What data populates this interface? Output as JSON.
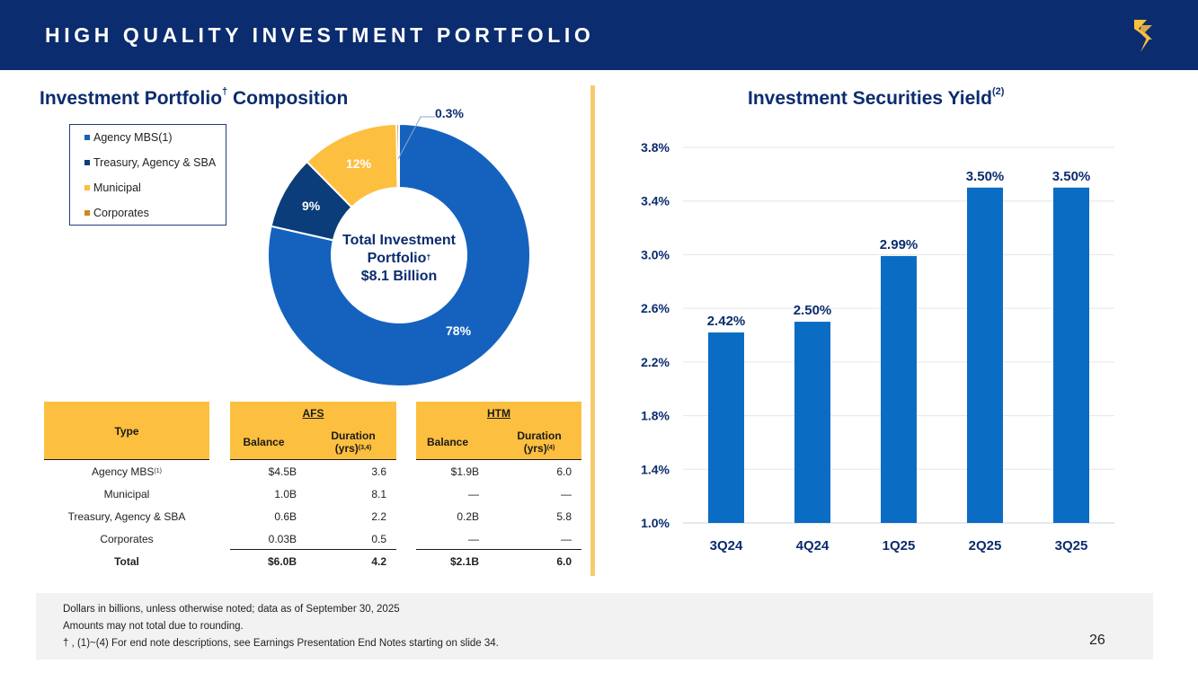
{
  "header": {
    "title": "HIGH QUALITY INVESTMENT PORTFOLIO"
  },
  "brand": {
    "navy": "#0b2c6e",
    "gold": "#fdbf3f",
    "blue": "#1562be",
    "bar_blue": "#0b6cc4"
  },
  "left": {
    "title": "Investment Portfolio",
    "title_sup": "†",
    "title_tail": " Composition"
  },
  "right": {
    "title": "Investment Securities Yield",
    "title_sup": "(2)"
  },
  "donut": {
    "center_line1": "Total Investment",
    "center_line2": "Portfolio",
    "center_sup": "†",
    "center_line3": "$8.1 Billion",
    "callout_label": "0.3%",
    "slices": [
      {
        "name": "Agency MBS(1)",
        "label": "78%",
        "color": "#1562be"
      },
      {
        "name": "Treasury, Agency & SBA",
        "label": "9%",
        "color": "#0b3d7a"
      },
      {
        "name": "Municipal",
        "label": "12%",
        "color": "#fdbf3f"
      },
      {
        "name": "Corporates",
        "label": "0.3%",
        "color": "#c98a1b"
      }
    ]
  },
  "table": {
    "type_header": "Type",
    "afs_header": "AFS",
    "htm_header": "HTM",
    "balance_header": "Balance",
    "duration_header_l1": "Duration",
    "duration_header_l2": "(yrs)",
    "afs_duration_sup": "(3,4)",
    "htm_duration_sup": "(4)",
    "rows": [
      {
        "type": "Agency MBS",
        "type_sup": "(1)",
        "afs_balance": "$4.5B",
        "afs_duration": "3.6",
        "htm_balance": "$1.9B",
        "htm_duration": "6.0"
      },
      {
        "type": "Municipal",
        "type_sup": "",
        "afs_balance": "1.0B",
        "afs_duration": "8.1",
        "htm_balance": "—",
        "htm_duration": "—"
      },
      {
        "type": "Treasury, Agency & SBA",
        "type_sup": "",
        "afs_balance": "0.6B",
        "afs_duration": "2.2",
        "htm_balance": "0.2B",
        "htm_duration": "5.8"
      },
      {
        "type": "Corporates",
        "type_sup": "",
        "afs_balance": "0.03B",
        "afs_duration": "0.5",
        "htm_balance": "—",
        "htm_duration": "—"
      }
    ],
    "total": {
      "type": "Total",
      "afs_balance": "$6.0B",
      "afs_duration": "4.2",
      "htm_balance": "$2.1B",
      "htm_duration": "6.0"
    }
  },
  "chart_data": [
    {
      "type": "pie",
      "title": "Investment Portfolio† Composition",
      "categories": [
        "Agency MBS(1)",
        "Treasury, Agency & SBA",
        "Municipal",
        "Corporates"
      ],
      "values": [
        78,
        9,
        12,
        0.3
      ],
      "labels": [
        "78%",
        "9%",
        "12%",
        "0.3%"
      ],
      "center_text": "Total Investment Portfolio† $8.1 Billion",
      "legend": "top-left"
    },
    {
      "type": "bar",
      "title": "Investment Securities Yield(2)",
      "categories": [
        "3Q24",
        "4Q24",
        "1Q25",
        "2Q25",
        "3Q25"
      ],
      "values": [
        2.42,
        2.5,
        2.99,
        3.5,
        3.5
      ],
      "data_labels": [
        "2.42%",
        "2.50%",
        "2.99%",
        "3.50%",
        "3.50%"
      ],
      "yticks": [
        1.0,
        1.4,
        1.8,
        2.2,
        2.6,
        3.0,
        3.4,
        3.8
      ],
      "ytick_labels": [
        "1.0%",
        "1.4%",
        "1.8%",
        "2.2%",
        "2.6%",
        "3.0%",
        "3.4%",
        "3.8%"
      ],
      "ylim": [
        1.0,
        3.8
      ],
      "grid": true,
      "xlabel": "",
      "ylabel": ""
    }
  ],
  "footer": {
    "line1": "Dollars in billions, unless otherwise noted; data as of September 30, 2025",
    "line2": "Amounts may not total due to rounding.",
    "line3": "† , (1)~(4)  For end note descriptions, see Earnings Presentation End Notes starting on slide 34.",
    "page": "26"
  }
}
